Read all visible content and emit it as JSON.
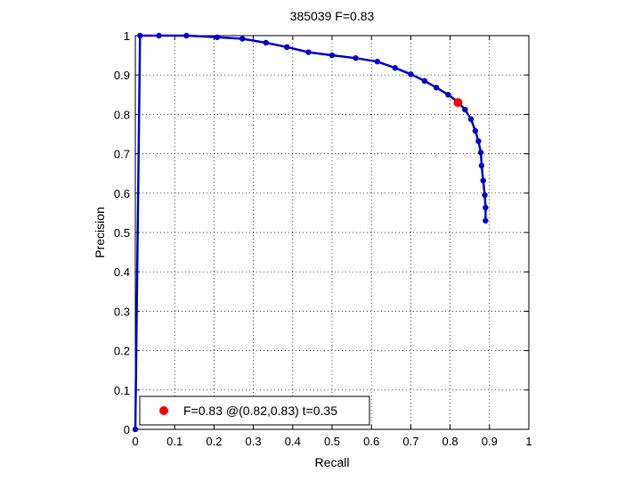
{
  "chart_data": {
    "type": "line",
    "title": "385039 F=0.83",
    "xlabel": "Recall",
    "ylabel": "Precision",
    "xlim": [
      0,
      1
    ],
    "ylim": [
      0,
      1
    ],
    "xticks": [
      "0",
      "0.1",
      "0.2",
      "0.3",
      "0.4",
      "0.5",
      "0.6",
      "0.7",
      "0.8",
      "0.9",
      "1"
    ],
    "yticks": [
      "0",
      "0.1",
      "0.2",
      "0.3",
      "0.4",
      "0.5",
      "0.6",
      "0.7",
      "0.8",
      "0.9",
      "1"
    ],
    "grid": true,
    "legend_position": "bottom-left",
    "series": [
      {
        "color": "#0000cc",
        "points": [
          [
            0.0,
            0.0
          ],
          [
            0.012,
            1.0
          ],
          [
            0.06,
            1.0
          ],
          [
            0.13,
            1.0
          ],
          [
            0.208,
            0.996
          ],
          [
            0.272,
            0.992
          ],
          [
            0.332,
            0.982
          ],
          [
            0.385,
            0.971
          ],
          [
            0.44,
            0.958
          ],
          [
            0.5,
            0.95
          ],
          [
            0.56,
            0.943
          ],
          [
            0.615,
            0.934
          ],
          [
            0.66,
            0.918
          ],
          [
            0.7,
            0.902
          ],
          [
            0.735,
            0.885
          ],
          [
            0.765,
            0.868
          ],
          [
            0.795,
            0.85
          ],
          [
            0.818,
            0.833
          ],
          [
            0.838,
            0.812
          ],
          [
            0.853,
            0.788
          ],
          [
            0.864,
            0.758
          ],
          [
            0.872,
            0.732
          ],
          [
            0.878,
            0.703
          ],
          [
            0.88,
            0.67
          ],
          [
            0.884,
            0.632
          ],
          [
            0.888,
            0.595
          ],
          [
            0.89,
            0.563
          ],
          [
            0.89,
            0.53
          ]
        ]
      }
    ],
    "highlight": {
      "x": 0.82,
      "y": 0.83,
      "color": "#ff0000"
    },
    "legend": {
      "label": "F=0.83 @(0.82,0.83) t=0.35",
      "marker_color": "#ff0000"
    }
  }
}
